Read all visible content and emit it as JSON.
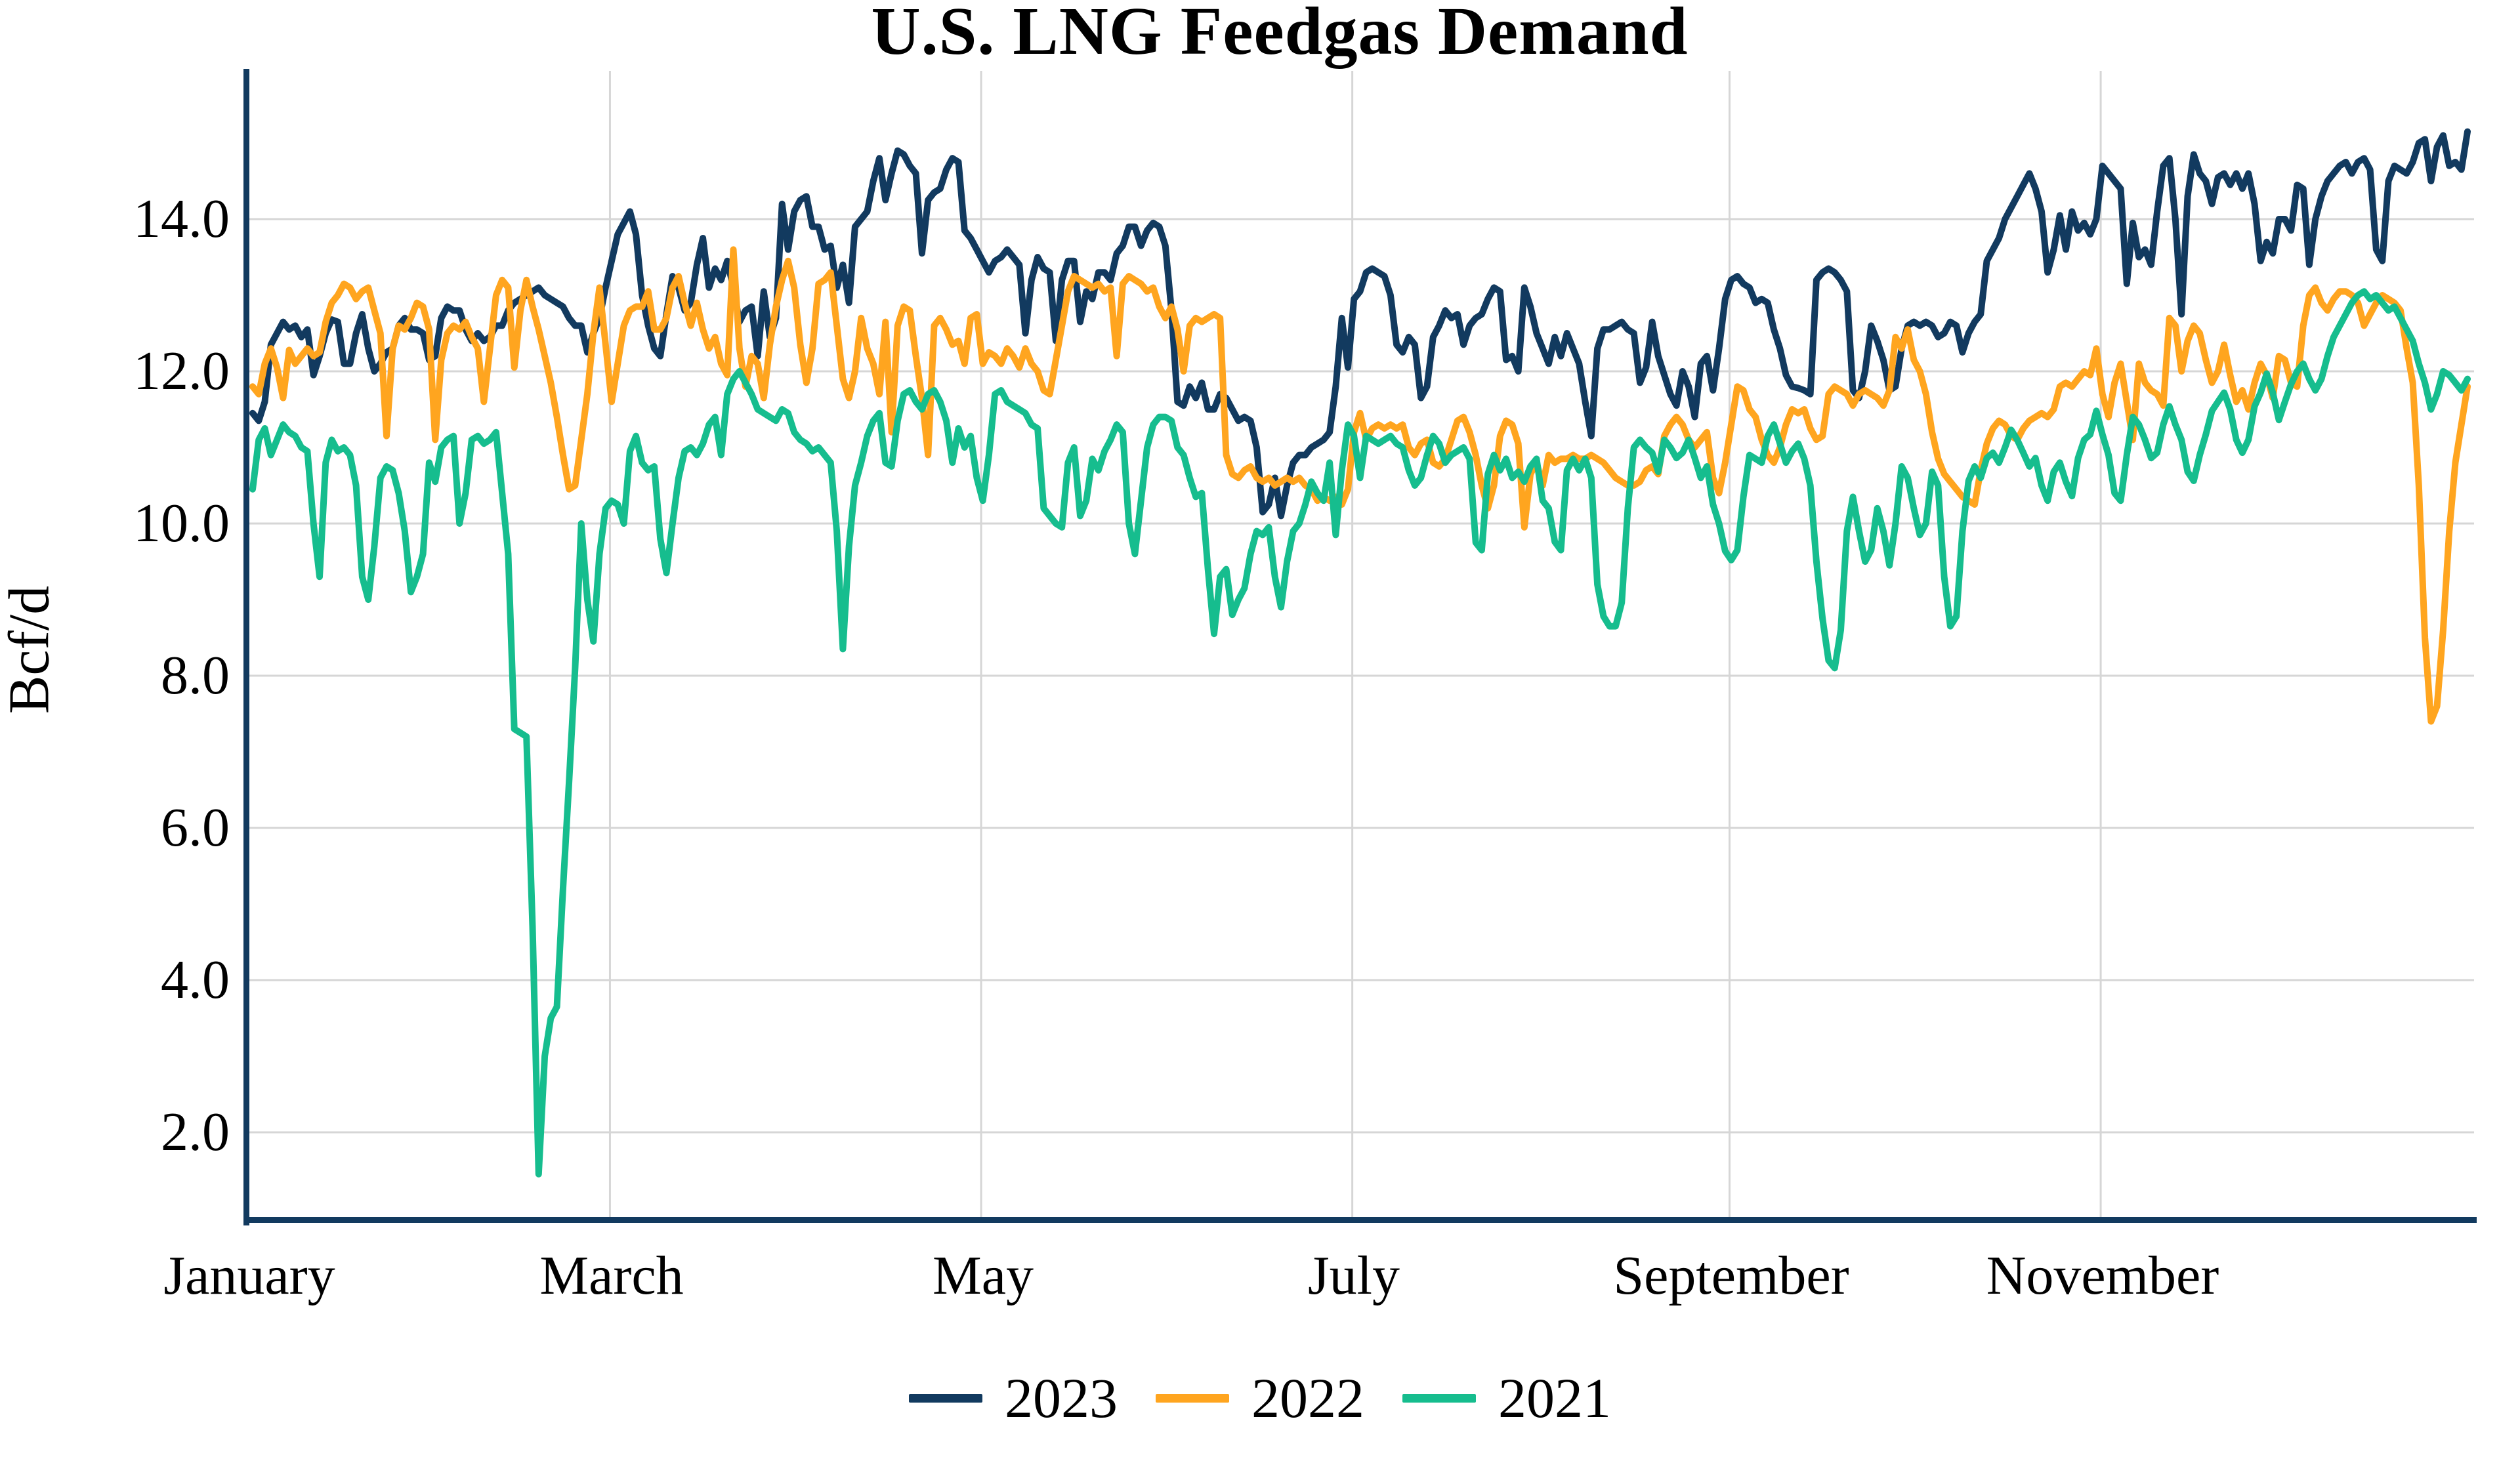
{
  "title": "U.S. LNG Feedgas Demand",
  "y_axis": {
    "label": "Bcf/d",
    "ticks": [
      "14.0",
      "12.0",
      "10.0",
      "8.0",
      "6.0",
      "4.0",
      "2.0"
    ],
    "tick_values": [
      14,
      12,
      10,
      8,
      6,
      4,
      2
    ]
  },
  "x_axis": {
    "ticks": [
      {
        "label": "January",
        "day": 1
      },
      {
        "label": "March",
        "day": 60
      },
      {
        "label": "May",
        "day": 121
      },
      {
        "label": "July",
        "day": 182
      },
      {
        "label": "September",
        "day": 244
      },
      {
        "label": "November",
        "day": 305
      }
    ],
    "gridline_days": [
      60,
      121,
      182,
      244,
      305
    ]
  },
  "legend": {
    "items": [
      {
        "label": "2023",
        "color": "#123A5F"
      },
      {
        "label": "2022",
        "color": "#FFA51F"
      },
      {
        "label": "2021",
        "color": "#16BD8E"
      }
    ]
  },
  "colors": {
    "axis": "#123A5F",
    "gridline": "#D6D6D6",
    "background": "#FFFFFF",
    "text": "#000000"
  },
  "chart_data": {
    "type": "line",
    "title": "U.S. LNG Feedgas Demand",
    "xlabel": "",
    "ylabel": "Bcf/d",
    "x_unit": "day_of_year",
    "x_range_days": [
      1,
      365
    ],
    "ylim": [
      0.85,
      15.95
    ],
    "grid": true,
    "legend_position": "bottom-center",
    "series": [
      {
        "name": "2023",
        "color": "#123A5F",
        "values": [
          11.45,
          11.35,
          11.6,
          12.35,
          12.5,
          12.65,
          12.55,
          12.6,
          12.45,
          12.55,
          11.95,
          12.2,
          12.5,
          12.68,
          12.65,
          12.1,
          12.1,
          12.5,
          12.75,
          12.3,
          12.0,
          12.1,
          12.25,
          12.3,
          12.6,
          12.7,
          12.55,
          12.55,
          12.5,
          12.15,
          12.2,
          12.7,
          12.85,
          12.8,
          12.8,
          12.55,
          12.4,
          12.5,
          12.4,
          12.45,
          12.6,
          12.6,
          12.8,
          12.9,
          12.95,
          13.0,
          13.05,
          13.1,
          13.0,
          12.95,
          12.9,
          12.85,
          12.7,
          12.6,
          12.6,
          12.25,
          12.5,
          12.7,
          13.1,
          13.45,
          13.8,
          13.95,
          14.1,
          13.8,
          13.0,
          12.6,
          12.3,
          12.2,
          12.75,
          13.25,
          13.1,
          12.8,
          12.9,
          13.4,
          13.75,
          13.1,
          13.35,
          13.2,
          13.45,
          13.1,
          12.65,
          12.8,
          12.85,
          12.2,
          13.05,
          12.45,
          12.7,
          14.2,
          13.6,
          14.1,
          14.25,
          14.3,
          13.9,
          13.9,
          13.6,
          13.65,
          13.1,
          13.4,
          12.9,
          13.9,
          14.0,
          14.1,
          14.5,
          14.8,
          14.25,
          14.6,
          14.9,
          14.85,
          14.7,
          14.6,
          13.55,
          14.25,
          14.35,
          14.4,
          14.65,
          14.8,
          14.75,
          13.85,
          13.75,
          13.6,
          13.45,
          13.3,
          13.45,
          13.5,
          13.6,
          13.5,
          13.4,
          12.5,
          13.2,
          13.5,
          13.35,
          13.3,
          12.4,
          13.2,
          13.45,
          13.45,
          12.65,
          13.05,
          12.95,
          13.3,
          13.3,
          13.2,
          13.55,
          13.65,
          13.9,
          13.9,
          13.65,
          13.85,
          13.95,
          13.9,
          13.65,
          12.8,
          11.6,
          11.55,
          11.8,
          11.65,
          11.85,
          11.5,
          11.5,
          11.7,
          11.65,
          11.5,
          11.35,
          11.4,
          11.35,
          11.0,
          10.15,
          10.25,
          10.6,
          10.1,
          10.5,
          10.8,
          10.9,
          10.9,
          11.0,
          11.05,
          11.1,
          11.2,
          11.8,
          12.7,
          12.05,
          12.95,
          13.05,
          13.3,
          13.35,
          13.3,
          13.25,
          13.0,
          12.35,
          12.25,
          12.45,
          12.35,
          11.65,
          11.8,
          12.45,
          12.6,
          12.8,
          12.7,
          12.75,
          12.35,
          12.6,
          12.7,
          12.75,
          12.95,
          13.1,
          13.05,
          12.15,
          12.2,
          12.0,
          13.1,
          12.85,
          12.5,
          12.3,
          12.1,
          12.45,
          12.2,
          12.5,
          12.3,
          12.1,
          11.6,
          11.15,
          12.3,
          12.55,
          12.55,
          12.6,
          12.65,
          12.55,
          12.5,
          11.85,
          12.05,
          12.65,
          12.2,
          11.95,
          11.7,
          11.55,
          12.0,
          11.8,
          11.4,
          12.1,
          12.2,
          11.75,
          12.3,
          12.95,
          13.2,
          13.25,
          13.15,
          13.1,
          12.9,
          12.95,
          12.9,
          12.55,
          12.3,
          11.95,
          11.8,
          11.78,
          11.75,
          11.7,
          13.2,
          13.3,
          13.35,
          13.3,
          13.2,
          13.05,
          11.75,
          11.65,
          12.0,
          12.6,
          12.4,
          12.15,
          11.75,
          11.8,
          12.3,
          12.6,
          12.65,
          12.6,
          12.65,
          12.6,
          12.45,
          12.5,
          12.65,
          12.6,
          12.25,
          12.5,
          12.65,
          12.75,
          13.45,
          13.6,
          13.75,
          14.0,
          14.15,
          14.3,
          14.45,
          14.6,
          14.4,
          14.1,
          13.3,
          13.6,
          14.05,
          13.6,
          14.1,
          13.85,
          13.95,
          13.8,
          14.0,
          14.7,
          14.6,
          14.5,
          14.4,
          13.15,
          13.95,
          13.5,
          13.6,
          13.4,
          14.1,
          14.7,
          14.8,
          14.0,
          12.75,
          14.3,
          14.85,
          14.6,
          14.5,
          14.2,
          14.55,
          14.6,
          14.45,
          14.6,
          14.4,
          14.6,
          14.2,
          13.45,
          13.7,
          13.55,
          14.0,
          14.0,
          13.85,
          14.45,
          14.4,
          13.4,
          14.0,
          14.3,
          14.5,
          14.6,
          14.7,
          14.75,
          14.6,
          14.75,
          14.8,
          14.65,
          13.6,
          13.45,
          14.5,
          14.7,
          14.65,
          14.6,
          14.75,
          15.0,
          15.05,
          14.5,
          14.95,
          15.1,
          14.7,
          14.75,
          14.65,
          15.15
        ]
      },
      {
        "name": "2022",
        "color": "#FFA51F",
        "values": [
          11.8,
          11.7,
          12.1,
          12.3,
          12.05,
          11.65,
          12.28,
          12.1,
          12.2,
          12.3,
          12.2,
          12.25,
          12.65,
          12.9,
          13.0,
          13.15,
          13.1,
          12.95,
          13.05,
          13.1,
          12.8,
          12.5,
          11.15,
          12.3,
          12.6,
          12.55,
          12.7,
          12.9,
          12.85,
          12.55,
          11.1,
          12.15,
          12.5,
          12.6,
          12.55,
          12.65,
          12.45,
          12.3,
          11.6,
          12.3,
          13.0,
          13.2,
          13.1,
          12.05,
          12.8,
          13.2,
          12.85,
          12.55,
          12.2,
          11.85,
          11.4,
          10.9,
          10.45,
          10.5,
          11.1,
          11.7,
          12.5,
          13.1,
          12.35,
          11.6,
          12.1,
          12.6,
          12.8,
          12.85,
          12.85,
          13.05,
          12.55,
          12.55,
          12.7,
          13.1,
          13.25,
          12.9,
          12.6,
          12.9,
          12.55,
          12.3,
          12.45,
          12.1,
          11.95,
          13.6,
          12.3,
          11.8,
          12.2,
          12.1,
          11.65,
          12.35,
          12.85,
          13.2,
          13.45,
          13.1,
          12.35,
          11.85,
          12.3,
          13.15,
          13.2,
          13.3,
          12.6,
          11.9,
          11.65,
          12.0,
          12.7,
          12.3,
          12.1,
          11.7,
          12.65,
          11.2,
          12.6,
          12.85,
          12.8,
          12.2,
          11.65,
          10.9,
          12.6,
          12.7,
          12.55,
          12.35,
          12.4,
          12.1,
          12.7,
          12.75,
          12.1,
          12.25,
          12.2,
          12.1,
          12.3,
          12.2,
          12.05,
          12.3,
          12.1,
          12.0,
          11.75,
          11.7,
          12.15,
          12.6,
          13.05,
          13.25,
          13.2,
          13.15,
          13.1,
          13.15,
          13.05,
          13.1,
          12.2,
          13.15,
          13.25,
          13.2,
          13.15,
          13.05,
          13.1,
          12.85,
          12.7,
          12.85,
          12.55,
          12.0,
          12.6,
          12.7,
          12.65,
          12.7,
          12.75,
          12.7,
          10.9,
          10.65,
          10.6,
          10.7,
          10.75,
          10.6,
          10.55,
          10.6,
          10.5,
          10.55,
          10.6,
          10.55,
          10.6,
          10.5,
          10.45,
          10.3,
          10.35,
          10.3,
          10.35,
          10.25,
          10.45,
          11.2,
          11.45,
          11.1,
          11.25,
          11.3,
          11.25,
          11.3,
          11.25,
          11.3,
          11.0,
          10.9,
          11.05,
          11.1,
          10.8,
          10.75,
          10.85,
          11.1,
          11.35,
          11.4,
          11.2,
          10.9,
          10.5,
          10.2,
          10.5,
          11.15,
          11.35,
          11.3,
          11.05,
          9.95,
          10.65,
          10.8,
          10.5,
          10.9,
          10.8,
          10.85,
          10.85,
          10.9,
          10.85,
          10.85,
          10.9,
          10.85,
          10.8,
          10.7,
          10.6,
          10.55,
          10.5,
          10.5,
          10.55,
          10.7,
          10.75,
          10.65,
          11.15,
          11.3,
          11.4,
          11.3,
          11.1,
          11.0,
          11.1,
          11.2,
          10.6,
          10.4,
          10.8,
          11.3,
          11.8,
          11.75,
          11.5,
          11.4,
          11.1,
          10.9,
          10.8,
          11.0,
          11.3,
          11.5,
          11.45,
          11.5,
          11.25,
          11.1,
          11.15,
          11.7,
          11.8,
          11.75,
          11.7,
          11.55,
          11.7,
          11.75,
          11.7,
          11.65,
          11.55,
          11.75,
          12.45,
          12.3,
          12.55,
          12.15,
          12.0,
          11.7,
          11.2,
          10.85,
          10.65,
          10.55,
          10.45,
          10.35,
          10.3,
          10.25,
          10.7,
          11.05,
          11.25,
          11.35,
          11.3,
          11.15,
          11.1,
          11.25,
          11.35,
          11.4,
          11.45,
          11.4,
          11.5,
          11.8,
          11.85,
          11.8,
          11.9,
          12.0,
          11.95,
          12.3,
          11.7,
          11.4,
          11.85,
          12.1,
          11.6,
          11.1,
          12.1,
          11.85,
          11.75,
          11.7,
          11.55,
          12.7,
          12.6,
          12.0,
          12.4,
          12.6,
          12.5,
          12.15,
          11.85,
          12.0,
          12.35,
          11.95,
          11.6,
          11.75,
          11.5,
          11.85,
          12.1,
          11.95,
          11.65,
          12.2,
          12.15,
          11.85,
          11.8,
          12.6,
          13.0,
          13.1,
          12.9,
          12.8,
          12.95,
          13.05,
          13.05,
          13.0,
          12.9,
          12.6,
          12.75,
          12.9,
          13.0,
          12.95,
          12.9,
          12.8,
          12.3,
          11.85,
          10.5,
          8.5,
          7.4,
          7.6,
          8.6,
          9.9,
          10.8,
          11.3,
          11.8
        ]
      },
      {
        "name": "2021",
        "color": "#16BD8E",
        "values": [
          10.45,
          11.1,
          11.25,
          10.9,
          11.1,
          11.3,
          11.2,
          11.15,
          11.0,
          10.95,
          10.0,
          9.3,
          10.8,
          11.1,
          10.95,
          11.0,
          10.9,
          10.5,
          9.3,
          9.0,
          9.7,
          10.6,
          10.75,
          10.7,
          10.4,
          9.9,
          9.1,
          9.3,
          9.6,
          10.8,
          10.55,
          11.0,
          11.1,
          11.15,
          10.0,
          10.4,
          11.1,
          11.15,
          11.05,
          11.1,
          11.2,
          10.4,
          9.6,
          7.3,
          7.25,
          7.2,
          4.7,
          1.45,
          3.0,
          3.5,
          3.65,
          5.2,
          6.6,
          8.1,
          10.0,
          9.0,
          8.45,
          9.6,
          10.2,
          10.3,
          10.25,
          10.0,
          10.95,
          11.15,
          10.8,
          10.7,
          10.75,
          9.8,
          9.35,
          10.0,
          10.6,
          10.95,
          11.0,
          10.9,
          11.05,
          11.3,
          11.4,
          10.9,
          11.7,
          11.9,
          12.0,
          11.85,
          11.7,
          11.5,
          11.45,
          11.4,
          11.35,
          11.5,
          11.45,
          11.2,
          11.1,
          11.05,
          10.95,
          11.0,
          10.9,
          10.8,
          9.9,
          8.35,
          9.7,
          10.5,
          10.8,
          11.15,
          11.35,
          11.45,
          10.8,
          10.75,
          11.35,
          11.7,
          11.75,
          11.6,
          11.5,
          11.7,
          11.75,
          11.6,
          11.35,
          10.8,
          11.25,
          11.0,
          11.15,
          10.6,
          10.3,
          10.9,
          11.7,
          11.75,
          11.6,
          11.55,
          11.5,
          11.45,
          11.3,
          11.25,
          10.2,
          10.1,
          10.0,
          9.95,
          10.8,
          11.0,
          10.1,
          10.3,
          10.85,
          10.7,
          10.95,
          11.1,
          11.3,
          11.2,
          10.0,
          9.6,
          10.3,
          11.0,
          11.3,
          11.4,
          11.4,
          11.35,
          11.0,
          10.9,
          10.6,
          10.35,
          10.4,
          9.4,
          8.55,
          9.3,
          9.4,
          8.8,
          9.0,
          9.15,
          9.6,
          9.9,
          9.85,
          9.95,
          9.3,
          8.9,
          9.5,
          9.9,
          10.0,
          10.25,
          10.55,
          10.4,
          10.3,
          10.8,
          9.85,
          10.7,
          11.3,
          11.15,
          10.6,
          11.15,
          11.1,
          11.05,
          11.1,
          11.15,
          11.05,
          11.0,
          10.7,
          10.5,
          10.6,
          10.9,
          11.15,
          11.05,
          10.8,
          10.9,
          10.95,
          11.0,
          10.85,
          9.75,
          9.65,
          10.65,
          10.9,
          10.7,
          10.85,
          10.6,
          10.68,
          10.55,
          10.75,
          10.85,
          10.3,
          10.2,
          9.76,
          9.65,
          10.7,
          10.85,
          10.7,
          10.85,
          10.6,
          9.2,
          8.78,
          8.65,
          8.65,
          8.96,
          10.2,
          11.0,
          11.1,
          11.0,
          10.93,
          10.68,
          11.1,
          11.0,
          10.86,
          10.93,
          11.1,
          10.86,
          10.6,
          10.75,
          10.25,
          10.0,
          9.64,
          9.52,
          9.65,
          10.35,
          10.9,
          10.85,
          10.8,
          11.15,
          11.3,
          11.05,
          10.8,
          10.95,
          11.05,
          10.85,
          10.5,
          9.5,
          8.75,
          8.2,
          8.1,
          8.6,
          9.9,
          10.35,
          9.9,
          9.5,
          9.65,
          10.2,
          9.9,
          9.45,
          10.0,
          10.75,
          10.6,
          10.2,
          9.85,
          10.0,
          10.68,
          10.5,
          9.3,
          8.65,
          8.78,
          9.9,
          10.56,
          10.75,
          10.6,
          10.86,
          10.93,
          10.8,
          11.0,
          11.23,
          11.1,
          10.93,
          10.75,
          10.86,
          10.5,
          10.3,
          10.68,
          10.8,
          10.55,
          10.36,
          10.86,
          11.1,
          11.17,
          11.48,
          11.17,
          10.9,
          10.4,
          10.3,
          10.9,
          11.4,
          11.3,
          11.1,
          10.86,
          10.93,
          11.3,
          11.54,
          11.3,
          11.1,
          10.68,
          10.56,
          10.9,
          11.17,
          11.48,
          11.6,
          11.72,
          11.5,
          11.1,
          10.93,
          11.1,
          11.54,
          11.72,
          11.97,
          11.72,
          11.36,
          11.6,
          11.83,
          12.0,
          12.1,
          11.9,
          11.75,
          11.9,
          12.2,
          12.45,
          12.6,
          12.75,
          12.9,
          13.0,
          13.05,
          12.95,
          13.0,
          12.9,
          12.8,
          12.85,
          12.7,
          12.55,
          12.4,
          12.1,
          11.85,
          11.5,
          11.7,
          12.0,
          11.95,
          11.85,
          11.75,
          11.9
        ]
      }
    ]
  }
}
